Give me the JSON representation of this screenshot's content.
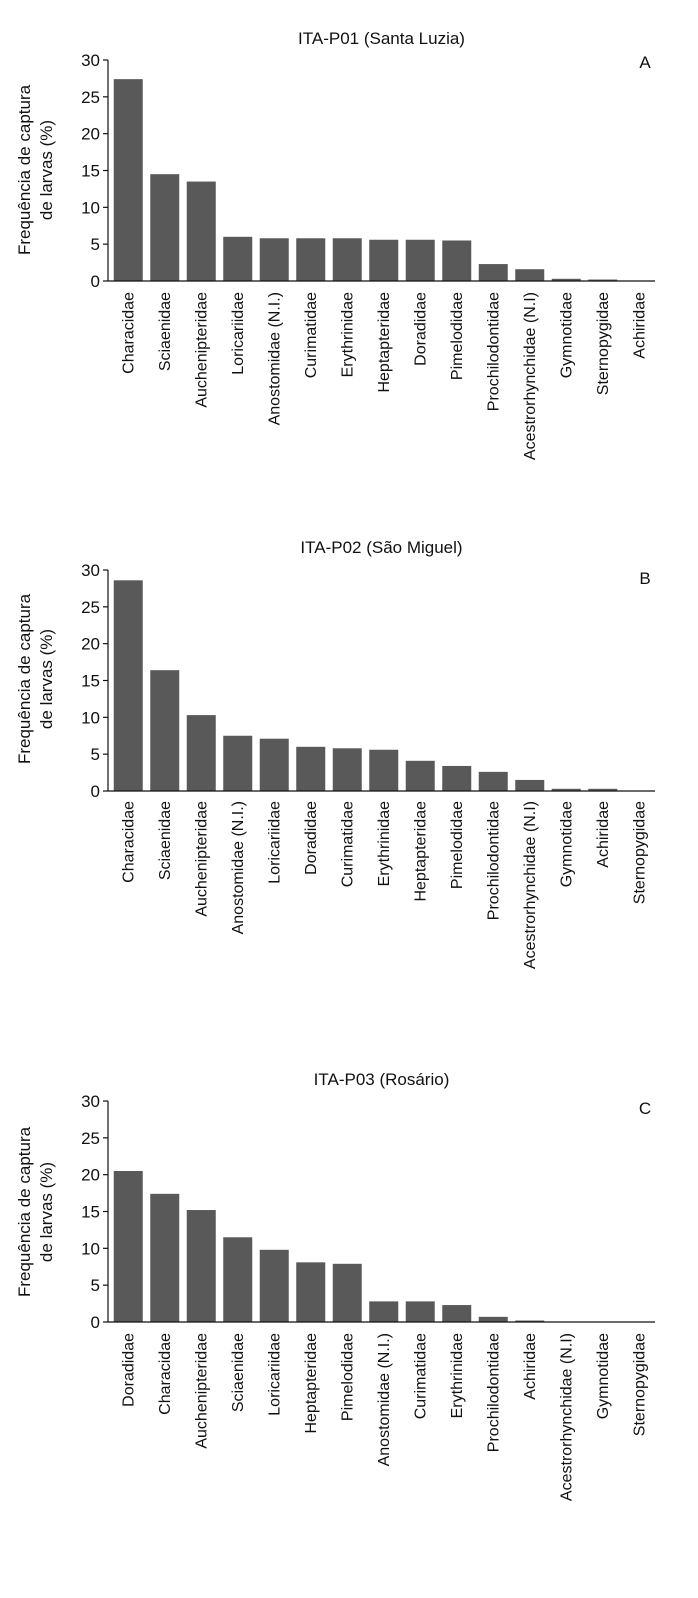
{
  "chart_data": [
    {
      "type": "bar",
      "title": "ITA-P01 (Santa Luzia)",
      "panel_label": "A",
      "ylabel": [
        "Frequência de captura",
        "de larvas (%)"
      ],
      "ylim": [
        0,
        30
      ],
      "yticks": [
        0,
        5,
        10,
        15,
        20,
        25,
        30
      ],
      "color": "#595959",
      "categories": [
        "Characidae",
        "Sciaenidae",
        "Auchenipteridae",
        "Loricariidae",
        "Anostomidae (N.I.)",
        "Curimatidae",
        "Erythrinidae",
        "Heptapteridae",
        "Doradidae",
        "Pimelodidae",
        "Prochilodontidae",
        "Acestrorhynchidae (N.I)",
        "Gymnotidae",
        "Sternopygidae",
        "Achiridae"
      ],
      "values": [
        27.4,
        14.5,
        13.5,
        6.0,
        5.8,
        5.8,
        5.8,
        5.6,
        5.6,
        5.5,
        2.3,
        1.6,
        0.3,
        0.2,
        0.05
      ]
    },
    {
      "type": "bar",
      "title": "ITA-P02 (São Miguel)",
      "panel_label": "B",
      "ylabel": [
        "Frequência de captura",
        "de larvas (%)"
      ],
      "ylim": [
        0,
        30
      ],
      "yticks": [
        0,
        5,
        10,
        15,
        20,
        25,
        30
      ],
      "color": "#595959",
      "categories": [
        "Characidae",
        "Sciaenidae",
        "Auchenipteridae",
        "Anostomidae (N.I.)",
        "Loricariidae",
        "Doradidae",
        "Curimatidae",
        "Erythrinidae",
        "Heptapteridae",
        "Pimelodidae",
        "Prochilodontidae",
        "Acestrorhynchidae (N.I)",
        "Gymnotidae",
        "Achiridae",
        "Sternopygidae"
      ],
      "values": [
        28.6,
        16.4,
        10.3,
        7.5,
        7.1,
        6.0,
        5.8,
        5.6,
        4.1,
        3.4,
        2.6,
        1.5,
        0.3,
        0.3,
        0.05
      ]
    },
    {
      "type": "bar",
      "title": "ITA-P03 (Rosário)",
      "panel_label": "C",
      "ylabel": [
        "Frequência de captura",
        "de larvas (%)"
      ],
      "ylim": [
        0,
        30
      ],
      "yticks": [
        0,
        5,
        10,
        15,
        20,
        25,
        30
      ],
      "color": "#595959",
      "categories": [
        "Doradidae",
        "Characidae",
        "Auchenipteridae",
        "Sciaenidae",
        "Loricariidae",
        "Heptapteridae",
        "Pimelodidae",
        "Anostomidae (N.I.)",
        "Curimatidae",
        "Erythrinidae",
        "Prochilodontidae",
        "Achiridae",
        "Acestrorhynchidae (N.I)",
        "Gymnotidae",
        "Sternopygidae"
      ],
      "values": [
        20.5,
        17.4,
        15.2,
        11.5,
        9.8,
        8.1,
        7.9,
        2.8,
        2.8,
        2.3,
        0.7,
        0.2,
        0.05,
        0.0,
        0.0
      ]
    }
  ]
}
